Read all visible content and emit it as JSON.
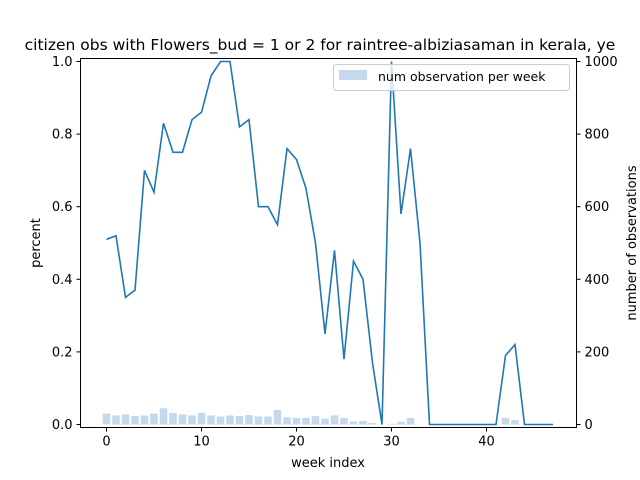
{
  "chart_data": {
    "type": "bar+line",
    "title": "citizen obs with Flowers_bud = 1 or 2 for raintree-albiziasaman in kerala, ye",
    "xlabel": "week index",
    "ylabel_left": "percent",
    "ylabel_right": "number of observations",
    "xlim": [
      -3,
      50
    ],
    "ylim_left": [
      0,
      1.0
    ],
    "ylim_right": [
      0,
      1000
    ],
    "xticks": [
      "0",
      "10",
      "20",
      "30",
      "40"
    ],
    "yticks_left": [
      "0.0",
      "0.2",
      "0.4",
      "0.6",
      "0.8",
      "1.0"
    ],
    "yticks_right": [
      "0",
      "200",
      "400",
      "600",
      "800",
      "1000"
    ],
    "legend": {
      "position": "top-right",
      "label": "num observation per week"
    },
    "colors": {
      "line": "#1f77b4",
      "bars": "#c5d9ec"
    },
    "x": [
      0,
      1,
      2,
      3,
      4,
      5,
      6,
      7,
      8,
      9,
      10,
      11,
      12,
      13,
      14,
      15,
      16,
      17,
      18,
      19,
      20,
      21,
      22,
      23,
      24,
      25,
      26,
      27,
      28,
      29,
      30,
      31,
      32,
      33,
      34,
      35,
      36,
      37,
      38,
      39,
      40,
      41,
      42,
      43,
      44,
      45,
      46,
      47
    ],
    "series": [
      {
        "name": "percent",
        "axis": "left",
        "kind": "line",
        "values": [
          0.51,
          0.52,
          0.35,
          0.37,
          0.7,
          0.64,
          0.83,
          0.75,
          0.75,
          0.84,
          0.86,
          0.96,
          1.0,
          1.0,
          0.82,
          0.84,
          0.6,
          0.6,
          0.55,
          0.76,
          0.73,
          0.65,
          0.5,
          0.25,
          0.48,
          0.18,
          0.45,
          0.4,
          0.17,
          0.0,
          1.0,
          0.58,
          0.76,
          0.5,
          0.0,
          0.0,
          0.0,
          0.0,
          0.0,
          0.0,
          0.0,
          0.0,
          0.19,
          0.22,
          0.0,
          0.0,
          0.0,
          0.0
        ]
      },
      {
        "name": "num observation per week",
        "axis": "right",
        "kind": "bar",
        "values": [
          30,
          25,
          28,
          23,
          25,
          30,
          45,
          32,
          28,
          25,
          32,
          25,
          22,
          25,
          23,
          26,
          22,
          22,
          40,
          20,
          18,
          18,
          23,
          16,
          25,
          18,
          8,
          10,
          4,
          0,
          2,
          8,
          18,
          0,
          0,
          0,
          0,
          0,
          0,
          0,
          0,
          0,
          18,
          12,
          0,
          0,
          0,
          0
        ]
      }
    ]
  }
}
